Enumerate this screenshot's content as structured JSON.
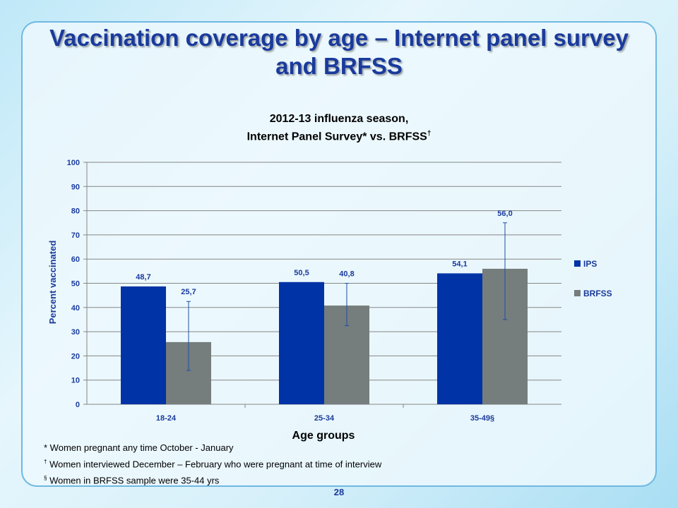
{
  "slide": {
    "title": "Vaccination coverage by age – Internet panel survey and BRFSS",
    "page_number": "28"
  },
  "footnotes": {
    "f1_mark": "*",
    "f1_text": " Women pregnant any time October - January",
    "f2_mark": "†",
    "f2_text": " Women interviewed December – February who were pregnant at time of interview",
    "f3_mark": "§",
    "f3_text": " Women in BRFSS sample were 35-44 yrs"
  },
  "colors": {
    "ips": "#0033a6",
    "brfss": "#757d7d",
    "title": "#1a3a9c",
    "error_bar": "#1f4ea3"
  },
  "chart_data": {
    "type": "bar",
    "title_line1": "2012-13 influenza season,",
    "title_line2": "Internet Panel Survey* vs. BRFSS",
    "title_mark": "†",
    "xlabel": "Age groups",
    "ylabel": "Percent vaccinated",
    "ylim": [
      0,
      100
    ],
    "yticks": [
      0,
      10,
      20,
      30,
      40,
      50,
      60,
      70,
      80,
      90,
      100
    ],
    "grid": true,
    "legend_position": "right",
    "categories": [
      "18-24",
      "25-34",
      "35-49§"
    ],
    "series": [
      {
        "name": "IPS",
        "values": [
          48.7,
          50.5,
          54.1
        ],
        "labels": [
          "48,7",
          "50,5",
          "54,1"
        ]
      },
      {
        "name": "BRFSS",
        "values": [
          25.7,
          40.8,
          56.0
        ],
        "labels": [
          "25,7",
          "40,8",
          "56,0"
        ],
        "error_low": [
          14.0,
          32.5,
          35.0
        ],
        "error_high": [
          42.5,
          50.0,
          75.0
        ]
      }
    ]
  }
}
